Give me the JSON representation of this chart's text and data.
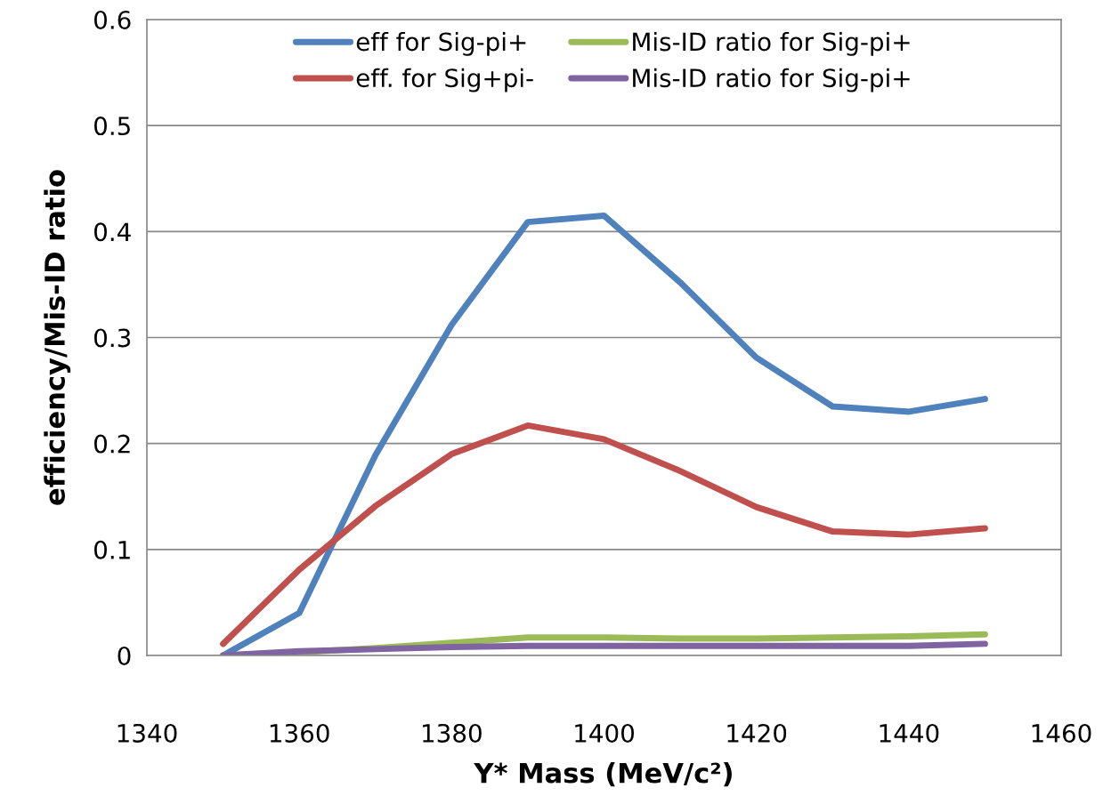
{
  "chart_data": {
    "type": "line",
    "xlabel": "Y* Mass (MeV/c²)",
    "ylabel": "efficiency/Mis-ID ratio",
    "x": [
      1350,
      1360,
      1370,
      1380,
      1390,
      1400,
      1410,
      1420,
      1430,
      1440,
      1450
    ],
    "series": [
      {
        "name": "eff for Sig-pi+",
        "color": "#4f81bd",
        "values": [
          0,
          0.04,
          0.189,
          0.312,
          0.409,
          0.415,
          0.352,
          0.281,
          0.235,
          0.23,
          0.242
        ]
      },
      {
        "name": "eff. for Sig+pi-",
        "color": "#c0504d",
        "values": [
          0.011,
          0.081,
          0.141,
          0.19,
          0.217,
          0.204,
          0.174,
          0.14,
          0.117,
          0.114,
          0.12
        ]
      },
      {
        "name": "Mis-ID ratio for Sig-pi+",
        "color": "#9bbb59",
        "values": [
          0,
          0.003,
          0.007,
          0.012,
          0.017,
          0.017,
          0.016,
          0.016,
          0.017,
          0.018,
          0.02
        ]
      },
      {
        "name": "Mis-ID ratio for Sig-pi+",
        "color": "#8064a2",
        "values": [
          0,
          0.004,
          0.006,
          0.008,
          0.009,
          0.009,
          0.009,
          0.009,
          0.009,
          0.009,
          0.011
        ]
      }
    ],
    "xlim": [
      1340,
      1460
    ],
    "xticks": [
      1340,
      1360,
      1380,
      1400,
      1420,
      1440,
      1460
    ],
    "ylim": [
      0,
      0.6
    ],
    "yticks": [
      0,
      0.1,
      0.2,
      0.3,
      0.4,
      0.5,
      0.6
    ],
    "grid": "y",
    "legend": "top",
    "marker": "none",
    "line_style": "solid"
  }
}
